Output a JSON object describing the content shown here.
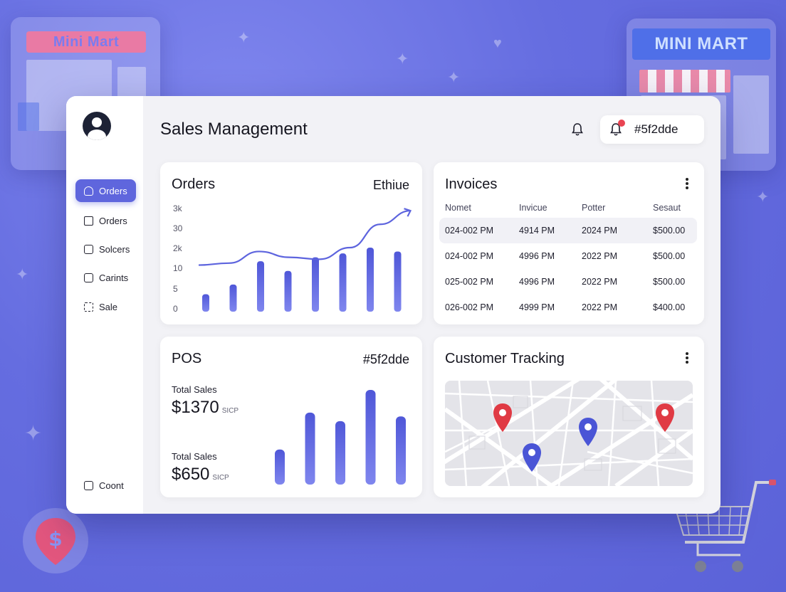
{
  "background": {
    "store_left_sign": "Mini Mart",
    "store_right_sign": "MINI MART"
  },
  "colors": {
    "accent": "#5f66dd",
    "bar": "#5d64de",
    "pin_red": "#e03a44",
    "pin_blue": "#4a55d6"
  },
  "sidebar": {
    "items": [
      {
        "label": "Orders",
        "icon": "user-icon",
        "active": true
      },
      {
        "label": "Orders",
        "icon": "home-icon",
        "active": false
      },
      {
        "label": "Solcers",
        "icon": "box-icon",
        "active": false
      },
      {
        "label": "Carints",
        "icon": "tag-icon",
        "active": false
      },
      {
        "label": "Sale",
        "icon": "sale-icon",
        "active": false
      }
    ],
    "footer": {
      "label": "Coont",
      "icon": "settings-icon"
    }
  },
  "header": {
    "title": "Sales Management",
    "user_chip": "#5f2dde"
  },
  "orders": {
    "title": "Orders",
    "filter": "Ethiue",
    "y_ticks": [
      "3k",
      "30",
      "2k",
      "10",
      "5",
      "0"
    ]
  },
  "invoices": {
    "title": "Invoices",
    "columns": [
      "Nomet",
      "Invicue",
      "Potter",
      "Sesaut"
    ],
    "rows": [
      [
        "024-002 PM",
        "4914 PM",
        "2024 PM",
        "$500.00"
      ],
      [
        "024-002 PM",
        "4996 PM",
        "2022 PM",
        "$500.00"
      ],
      [
        "025-002 PM",
        "4996 PM",
        "2022 PM",
        "$500.00"
      ],
      [
        "026-002 PM",
        "4999 PM",
        "2022 PM",
        "$400.00"
      ]
    ]
  },
  "pos": {
    "title": "POS",
    "tag": "#5f2dde",
    "stats": [
      {
        "label": "Total Sales",
        "value": "$1370",
        "unit": "SICP"
      },
      {
        "label": "Total Sales",
        "value": "$650",
        "unit": "SICP"
      }
    ]
  },
  "tracking": {
    "title": "Customer Tracking"
  },
  "chart_data": [
    {
      "type": "bar",
      "series": [
        {
          "type": "bar",
          "values": [
            0.9,
            1.4,
            2.6,
            2.1,
            2.8,
            3.0,
            3.3,
            3.1
          ]
        },
        {
          "type": "line",
          "values": [
            2.4,
            2.5,
            3.1,
            2.8,
            2.7,
            3.3,
            4.5,
            5.2
          ]
        }
      ],
      "ylim": [
        0,
        5.5
      ],
      "grid": false
    },
    {
      "type": "bar",
      "values": [
        0.37,
        0.76,
        0.67,
        1.0,
        0.72
      ],
      "ylim": [
        0,
        1
      ],
      "grid": false
    }
  ]
}
